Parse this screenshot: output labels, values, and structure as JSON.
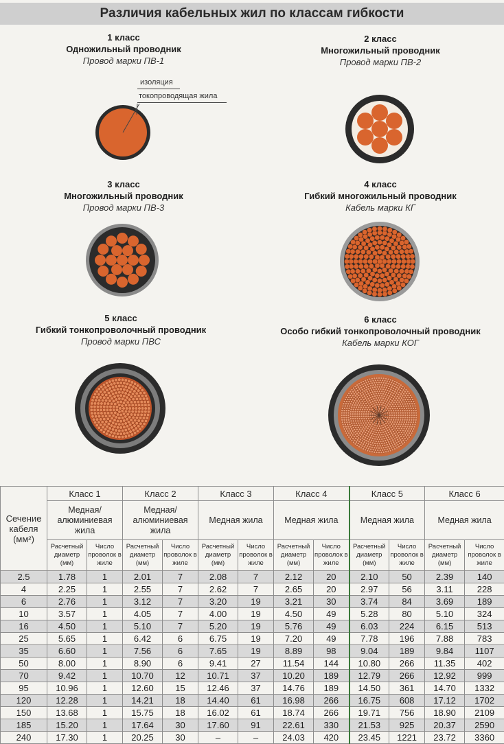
{
  "title": "Различия кабельных жил по классам гибкости",
  "classes": [
    {
      "cls": "1 класс",
      "name": "Одножильный проводник",
      "brand": "Провод марки ПВ-1"
    },
    {
      "cls": "2 класс",
      "name": "Многожильный проводник",
      "brand": "Провод марки ПВ-2"
    },
    {
      "cls": "3 класс",
      "name": "Многожильный проводник",
      "brand": "Провод марки ПВ-3"
    },
    {
      "cls": "4 класс",
      "name": "Гибкий многожильный проводник",
      "brand": "Кабель марки КГ"
    },
    {
      "cls": "5 класс",
      "name": "Гибкий тонкопроволочный проводник",
      "brand": "Провод марки ПВС"
    },
    {
      "cls": "6 класс",
      "name": "Особо гибкий тонкопроволочный проводник",
      "brand": "Кабель марки КОГ"
    }
  ],
  "annotations": {
    "insulation": "изоляция",
    "core": "токопроводящая жила"
  },
  "colors": {
    "copper": "#d9652e",
    "insulation": "#2b2b2b",
    "sheath": "#8a8a8a"
  },
  "table": {
    "section_header": "Сечение кабеля (мм²)",
    "class_headers": [
      "Класс 1",
      "Класс 2",
      "Класс 3",
      "Класс 4",
      "Класс 5",
      "Класс 6"
    ],
    "material_headers": [
      "Медная/ алюминиевая жила",
      "Медная/ алюминиевая жила",
      "Медная жила",
      "Медная жила",
      "Медная жила",
      "Медная жила"
    ],
    "sub_diameter": "Расчетный диаметр (мм)",
    "sub_count": "Число проволок в жиле",
    "rows": [
      [
        "2.5",
        "1.78",
        "1",
        "2.01",
        "7",
        "2.08",
        "7",
        "2.12",
        "20",
        "2.10",
        "50",
        "2.39",
        "140"
      ],
      [
        "4",
        "2.25",
        "1",
        "2.55",
        "7",
        "2.62",
        "7",
        "2.65",
        "20",
        "2.97",
        "56",
        "3.11",
        "228"
      ],
      [
        "6",
        "2.76",
        "1",
        "3.12",
        "7",
        "3.20",
        "19",
        "3.21",
        "30",
        "3.74",
        "84",
        "3.69",
        "189"
      ],
      [
        "10",
        "3.57",
        "1",
        "4.05",
        "7",
        "4.00",
        "19",
        "4.50",
        "49",
        "5.28",
        "80",
        "5.10",
        "324"
      ],
      [
        "16",
        "4.50",
        "1",
        "5.10",
        "7",
        "5.20",
        "19",
        "5.76",
        "49",
        "6.03",
        "224",
        "6.15",
        "513"
      ],
      [
        "25",
        "5.65",
        "1",
        "6.42",
        "6",
        "6.75",
        "19",
        "7.20",
        "49",
        "7.78",
        "196",
        "7.88",
        "783"
      ],
      [
        "35",
        "6.60",
        "1",
        "7.56",
        "6",
        "7.65",
        "19",
        "8.89",
        "98",
        "9.04",
        "189",
        "9.84",
        "1107"
      ],
      [
        "50",
        "8.00",
        "1",
        "8.90",
        "6",
        "9.41",
        "27",
        "11.54",
        "144",
        "10.80",
        "266",
        "11.35",
        "402"
      ],
      [
        "70",
        "9.42",
        "1",
        "10.70",
        "12",
        "10.71",
        "37",
        "10.20",
        "189",
        "12.79",
        "266",
        "12.92",
        "999"
      ],
      [
        "95",
        "10.96",
        "1",
        "12.60",
        "15",
        "12.46",
        "37",
        "14.76",
        "189",
        "14.50",
        "361",
        "14.70",
        "1332"
      ],
      [
        "120",
        "12.28",
        "1",
        "14.21",
        "18",
        "14.40",
        "61",
        "16.98",
        "266",
        "16.75",
        "608",
        "17.12",
        "1702"
      ],
      [
        "150",
        "13.68",
        "1",
        "15.75",
        "18",
        "16.02",
        "61",
        "18.74",
        "266",
        "19.71",
        "756",
        "18.90",
        "2109"
      ],
      [
        "185",
        "15.20",
        "1",
        "17.64",
        "30",
        "17.60",
        "91",
        "22.61",
        "330",
        "21.53",
        "925",
        "20.37",
        "2590"
      ],
      [
        "240",
        "17.30",
        "1",
        "20.25",
        "30",
        "–",
        "–",
        "24.03",
        "420",
        "23.45",
        "1221",
        "23.72",
        "3360"
      ]
    ]
  }
}
